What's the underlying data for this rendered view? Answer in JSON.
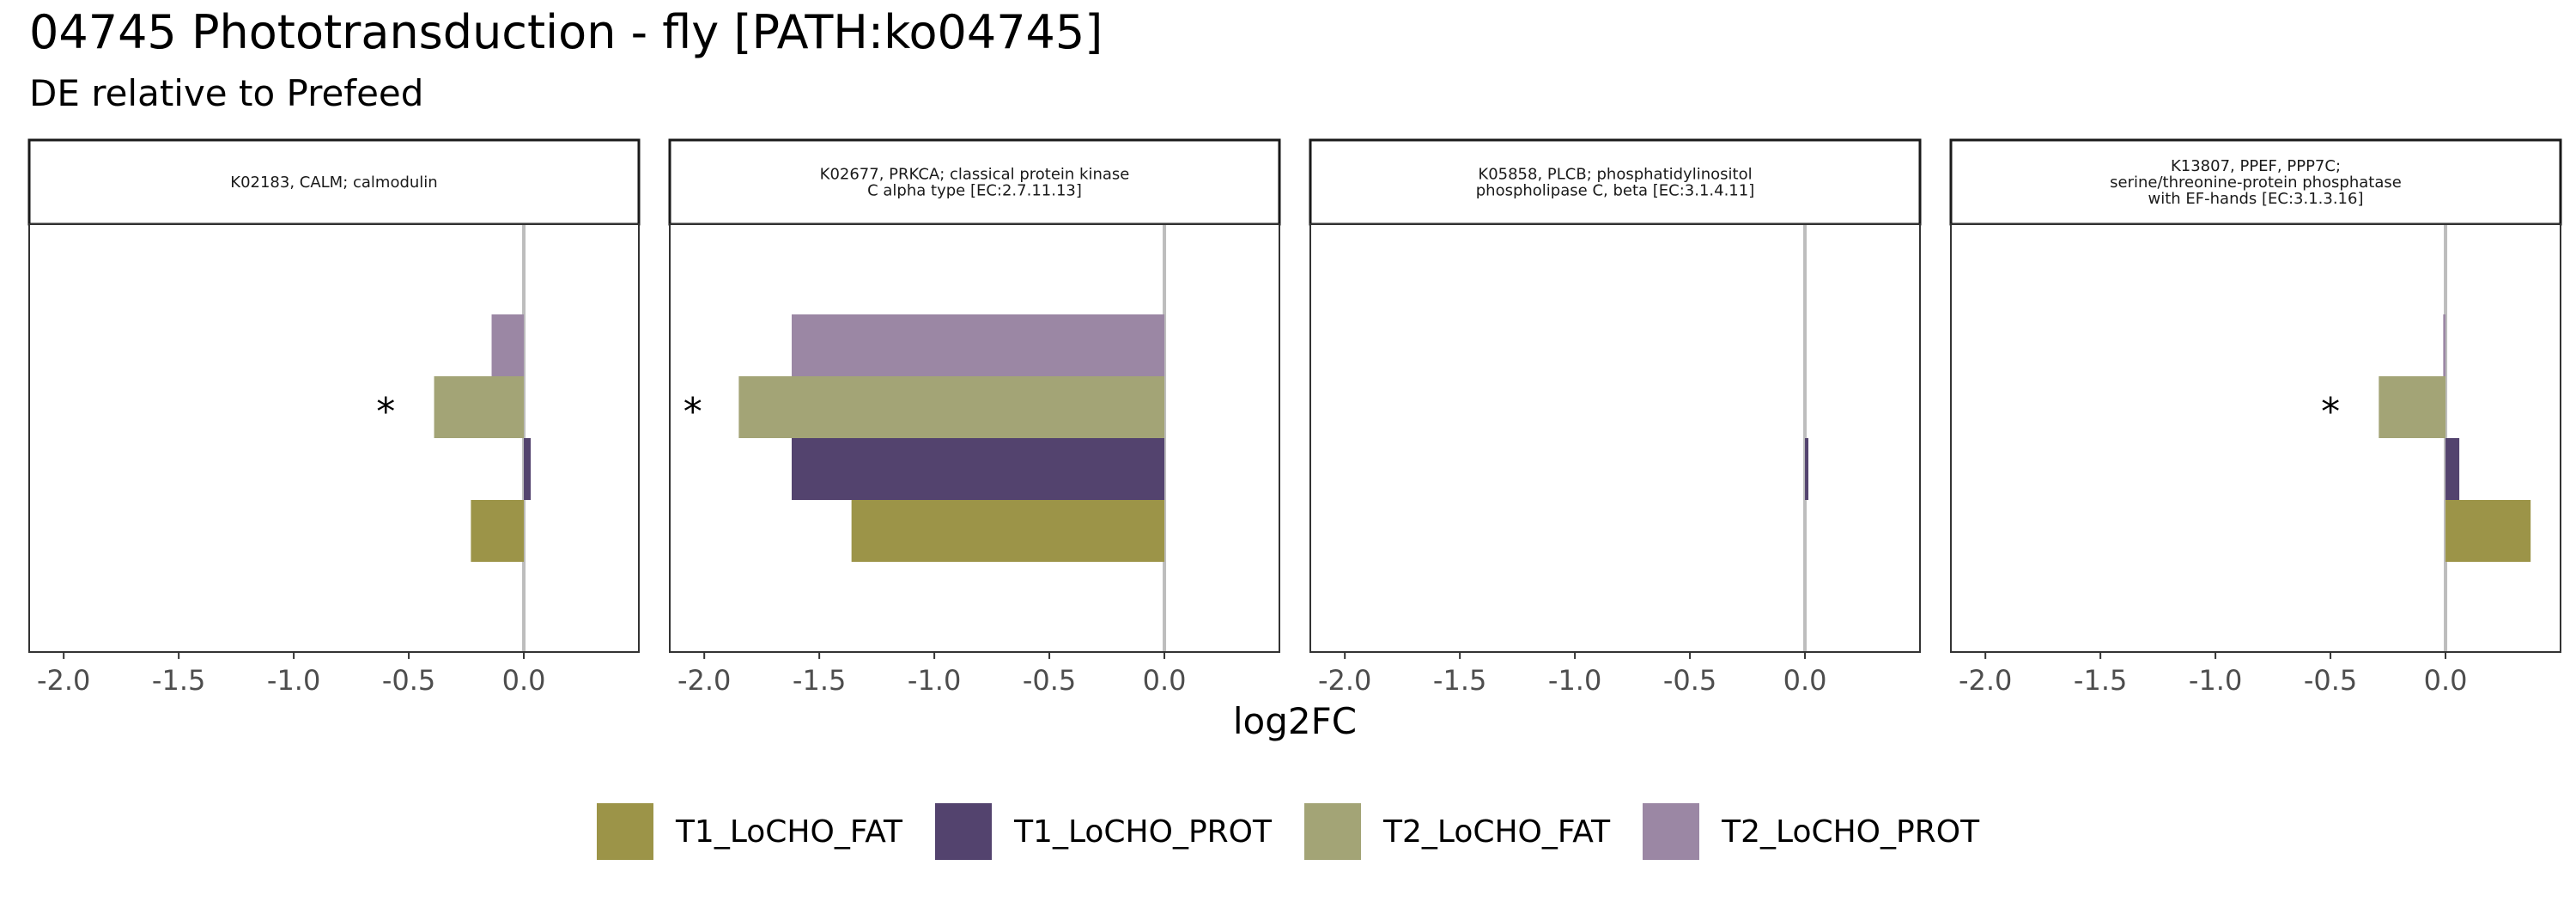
{
  "title": "04745 Phototransduction - fly [PATH:ko04745]",
  "subtitle": "DE relative to Prefeed",
  "colors": {
    "T1_LoCHO_FAT": "#9c9448",
    "T1_LoCHO_PROT": "#53436e",
    "T2_LoCHO_FAT": "#a3a476",
    "T2_LoCHO_PROT": "#9b87a4",
    "zero_line": "#bdbdbd"
  },
  "legend": [
    "T1_LoCHO_FAT",
    "T1_LoCHO_PROT",
    "T2_LoCHO_FAT",
    "T2_LoCHO_PROT"
  ],
  "chart_data": {
    "type": "bar",
    "orientation": "horizontal",
    "xlabel": "log2FC",
    "xlim": [
      -2.15,
      0.5
    ],
    "xticks": [
      -2.0,
      -1.5,
      -1.0,
      -0.5,
      0.0
    ],
    "xtick_labels": [
      "-2.0",
      "-1.5",
      "-1.0",
      "-0.5",
      "0.0"
    ],
    "series_order": [
      "T1_LoCHO_FAT",
      "T1_LoCHO_PROT",
      "T2_LoCHO_FAT",
      "T2_LoCHO_PROT"
    ],
    "panels": [
      {
        "strip": [
          "K02183, CALM; calmodulin"
        ],
        "values": {
          "T1_LoCHO_FAT": -0.23,
          "T1_LoCHO_PROT": 0.03,
          "T2_LoCHO_FAT": -0.39,
          "T2_LoCHO_PROT": -0.14
        },
        "annotations": [
          {
            "series": "T2_LoCHO_FAT",
            "text": "*",
            "x": -0.6
          }
        ]
      },
      {
        "strip": [
          "K02677, PRKCA; classical protein kinase",
          "C alpha type [EC:2.7.11.13]"
        ],
        "values": {
          "T1_LoCHO_FAT": -1.36,
          "T1_LoCHO_PROT": -1.62,
          "T2_LoCHO_FAT": -1.85,
          "T2_LoCHO_PROT": -1.62
        },
        "annotations": [
          {
            "series": "T2_LoCHO_FAT",
            "text": "*",
            "x": -2.05
          }
        ]
      },
      {
        "strip": [
          "K05858, PLCB; phosphatidylinositol",
          "phospholipase C, beta [EC:3.1.4.11]"
        ],
        "values": {
          "T1_LoCHO_FAT": 0.0,
          "T1_LoCHO_PROT": 0.015,
          "T2_LoCHO_FAT": 0.0,
          "T2_LoCHO_PROT": 0.0
        },
        "annotations": []
      },
      {
        "strip": [
          "K13807, PPEF, PPP7C;",
          "serine/threonine-protein phosphatase",
          "with EF-hands [EC:3.1.3.16]"
        ],
        "values": {
          "T1_LoCHO_FAT": 0.37,
          "T1_LoCHO_PROT": 0.06,
          "T2_LoCHO_FAT": -0.29,
          "T2_LoCHO_PROT": -0.01
        },
        "annotations": [
          {
            "series": "T2_LoCHO_FAT",
            "text": "*",
            "x": -0.5
          }
        ]
      }
    ]
  }
}
